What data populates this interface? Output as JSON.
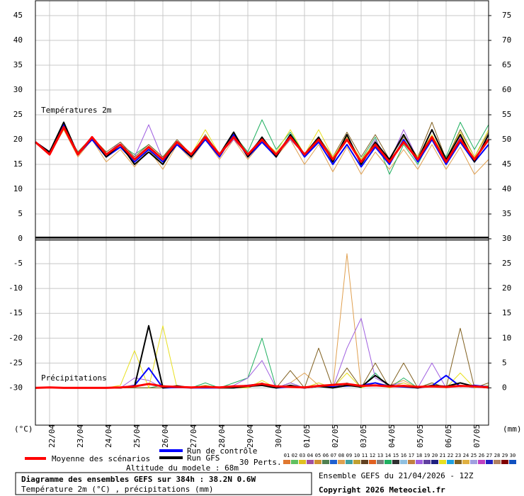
{
  "chart_data": [
    {
      "type": "line",
      "panel_label": "Températures 2m",
      "ylabel": "(°C)",
      "categories": [
        null,
        "22/04",
        null,
        "23/04",
        null,
        "24/04",
        null,
        "25/04",
        null,
        "26/04",
        null,
        "27/04",
        null,
        "28/04",
        null,
        "29/04",
        null,
        "30/04",
        null,
        "01/05",
        null,
        "02/05",
        null,
        "03/05",
        null,
        "04/05",
        null,
        "05/05",
        null,
        "06/05",
        null,
        "07/05",
        null
      ],
      "ylim": [
        0,
        48
      ],
      "yticks": [
        0,
        5,
        10,
        15,
        20,
        25,
        30,
        35,
        40,
        45
      ],
      "y2lim": [
        30,
        78
      ],
      "y2ticks": [
        35,
        40,
        45,
        50,
        55,
        60,
        65,
        70,
        75
      ],
      "grid": true,
      "series": [
        {
          "color": "#e0a050",
          "values": [
            19.5,
            17,
            22,
            16.5,
            20,
            15.5,
            18,
            14.5,
            18,
            14,
            19,
            16,
            20,
            16,
            20,
            16,
            19.5,
            16.5,
            20,
            15,
            19,
            13.5,
            18.5,
            13,
            17.5,
            14,
            18,
            14,
            19,
            14,
            18.5,
            13,
            16
          ]
        },
        {
          "color": "#20b060",
          "values": [
            19.5,
            17,
            22.5,
            17.5,
            20.5,
            17,
            19,
            17,
            19,
            16.5,
            19.5,
            17,
            20.5,
            17,
            21,
            17.5,
            24,
            18,
            21.5,
            17,
            20,
            16,
            20.5,
            16,
            20.5,
            13,
            19,
            15,
            20.5,
            16.5,
            23.5,
            18,
            23
          ]
        },
        {
          "color": "#a060e0",
          "values": [
            19.5,
            17,
            22,
            17,
            20,
            17,
            19.5,
            16.5,
            23,
            16,
            19,
            17,
            20.5,
            17,
            20,
            17,
            20.5,
            17,
            20,
            17,
            20.5,
            16,
            20.5,
            15.5,
            20,
            15.5,
            22,
            16,
            21,
            15.5,
            20.5,
            16,
            20
          ]
        },
        {
          "color": "#806020",
          "values": [
            19.5,
            17.5,
            22.5,
            17.5,
            20.5,
            17.5,
            19.5,
            16.5,
            19,
            16.5,
            20,
            17,
            21,
            17,
            21.5,
            17,
            20.5,
            17,
            21,
            17,
            20.5,
            16.5,
            21.5,
            16.5,
            21,
            16,
            20.5,
            16.5,
            23.5,
            16,
            22,
            16.5,
            21.5
          ]
        },
        {
          "color": "#e8e020",
          "values": [
            19.5,
            17,
            22,
            17,
            20,
            16.5,
            19,
            15.5,
            18,
            15,
            19.5,
            17,
            22,
            17,
            20.5,
            17,
            20,
            17.5,
            22,
            17,
            22,
            16.5,
            20.5,
            16,
            19.5,
            15.5,
            20,
            16.5,
            21,
            16,
            21.5,
            16.5,
            22
          ]
        },
        {
          "name": "Run de contrôle",
          "color": "#0000ff",
          "width": 2,
          "values": [
            19.5,
            17.5,
            23,
            17,
            20,
            16.5,
            18.5,
            15.5,
            18,
            15.5,
            19,
            16.5,
            20,
            16.5,
            21,
            16.5,
            19.5,
            16.5,
            21,
            16.5,
            19.5,
            15,
            19,
            14.5,
            18.5,
            15,
            20,
            15.5,
            20,
            15,
            19.5,
            15.5,
            19
          ]
        },
        {
          "name": "Run GFS",
          "color": "#000000",
          "width": 2,
          "values": [
            19.5,
            17.5,
            23.5,
            17,
            20.5,
            16.5,
            19,
            15,
            17.5,
            15,
            19.5,
            16.5,
            20.5,
            17,
            21.5,
            16.5,
            20.5,
            16.5,
            21,
            17,
            20.5,
            15.5,
            21,
            15,
            19.5,
            16,
            21,
            16,
            22,
            16,
            21,
            15.5,
            21
          ]
        },
        {
          "name": "Moyenne des scénarios",
          "color": "#ff0000",
          "width": 3,
          "values": [
            19.5,
            17,
            22.5,
            17,
            20.5,
            17,
            19,
            16,
            18.5,
            16,
            19.5,
            17,
            20.5,
            17,
            20.5,
            17,
            20,
            17,
            20.5,
            17,
            20,
            16,
            20,
            15.5,
            19,
            15.5,
            19.5,
            16,
            20.5,
            15.5,
            20,
            16,
            20
          ]
        }
      ]
    },
    {
      "type": "line",
      "panel_label": "Précipitations",
      "y2label": "(mm)",
      "ylim": [
        -37.5,
        0
      ],
      "yticks": [
        -30,
        -25,
        -20,
        -15,
        -10,
        -5
      ],
      "y2lim": [
        -7.5,
        30
      ],
      "y2ticks": [
        0,
        5,
        10,
        15,
        20,
        25,
        30
      ],
      "grid": true,
      "series": [
        {
          "color": "#e0a050",
          "axis": "y2",
          "values": [
            0,
            0,
            0,
            0,
            0,
            0,
            0,
            0,
            0,
            0,
            0,
            0,
            0,
            0,
            0.3,
            0.5,
            1,
            0,
            1,
            3,
            0.5,
            0,
            27,
            0,
            1,
            0.5,
            1.5,
            0,
            1,
            0,
            0.5,
            0,
            0.5
          ]
        },
        {
          "color": "#20b060",
          "axis": "y2",
          "values": [
            0,
            0,
            0,
            0,
            0,
            0,
            0,
            0,
            0,
            0.5,
            0,
            0,
            1,
            0,
            1,
            2,
            10,
            0,
            1,
            0,
            0.5,
            0,
            1,
            0,
            3,
            0,
            2,
            0,
            1,
            0,
            0.5,
            0,
            0.3
          ]
        },
        {
          "color": "#a060e0",
          "axis": "y2",
          "values": [
            0,
            0,
            0,
            0,
            0,
            0,
            0,
            2,
            1.5,
            0,
            0,
            0,
            0,
            0,
            0.5,
            2,
            5.5,
            0,
            1,
            0,
            1,
            0,
            8,
            14,
            2,
            0.5,
            1,
            0,
            5,
            0,
            0.5,
            0,
            0.3
          ]
        },
        {
          "color": "#806020",
          "axis": "y2",
          "values": [
            0,
            0,
            0,
            0,
            0,
            0,
            0,
            0,
            0,
            0,
            0,
            0,
            0.5,
            0,
            0,
            0,
            1,
            0,
            3.5,
            0,
            8,
            0,
            4,
            0,
            5,
            0,
            5,
            0,
            1,
            0,
            12,
            0,
            1
          ]
        },
        {
          "color": "#e8e020",
          "axis": "y2",
          "values": [
            0,
            0,
            0,
            0,
            0,
            0,
            0.5,
            7.5,
            0,
            12.5,
            0,
            0,
            0.5,
            0,
            0,
            0,
            1.5,
            0,
            0.5,
            0,
            1,
            0,
            3,
            0,
            1,
            0,
            1,
            0,
            0.5,
            0,
            3,
            0,
            0.5
          ]
        },
        {
          "color": "#0000ff",
          "width": 2,
          "axis": "y2",
          "values": [
            0,
            0.1,
            0,
            0,
            0,
            0,
            0,
            0.5,
            4,
            0,
            0.1,
            0,
            0,
            0,
            0.2,
            0.5,
            0.8,
            0,
            0.2,
            0,
            0.3,
            0.2,
            0.4,
            0.5,
            1,
            0.3,
            0.2,
            0,
            0.4,
            2.5,
            0.3,
            0.5,
            0.2
          ]
        },
        {
          "color": "#000000",
          "width": 2,
          "axis": "y2",
          "values": [
            0,
            0.1,
            0,
            0,
            0,
            0,
            0,
            0.3,
            12.5,
            0,
            0.4,
            0,
            0.3,
            0,
            0,
            0.3,
            0.5,
            0,
            0.5,
            0,
            0.3,
            0,
            0.5,
            0.2,
            2.5,
            0.5,
            0.3,
            0,
            0.5,
            0.3,
            1,
            0.3,
            0
          ]
        },
        {
          "color": "#ff0000",
          "width": 3,
          "axis": "y2",
          "values": [
            0,
            0.1,
            0,
            0,
            0,
            0,
            0.1,
            0.3,
            0.8,
            0.3,
            0.2,
            0.1,
            0.2,
            0.1,
            0.3,
            0.4,
            0.8,
            0.3,
            0.2,
            0.1,
            0.4,
            0.6,
            0.8,
            0.4,
            0.5,
            0.3,
            0.4,
            0.2,
            0.3,
            0.2,
            0.4,
            0.3,
            0.1
          ]
        }
      ]
    }
  ],
  "footer": {
    "perts_label": "30 Perts.",
    "altitude": "Altitude du modele : 68m",
    "perturbations": [
      {
        "label": "01",
        "color": "#e07830"
      },
      {
        "label": "02",
        "color": "#60c060"
      },
      {
        "label": "03",
        "color": "#e0c020"
      },
      {
        "label": "04",
        "color": "#a050a0"
      },
      {
        "label": "05",
        "color": "#d09030"
      },
      {
        "label": "06",
        "color": "#508050"
      },
      {
        "label": "07",
        "color": "#2060d0"
      },
      {
        "label": "08",
        "color": "#e0a050"
      },
      {
        "label": "09",
        "color": "#40a0a0"
      },
      {
        "label": "10",
        "color": "#c0a030"
      },
      {
        "label": "11",
        "color": "#604020"
      },
      {
        "label": "12",
        "color": "#e06020"
      },
      {
        "label": "13",
        "color": "#808080"
      },
      {
        "label": "14",
        "color": "#20b060"
      },
      {
        "label": "15",
        "color": "#303030"
      },
      {
        "label": "16",
        "color": "#90c0e0"
      },
      {
        "label": "17",
        "color": "#c08040"
      },
      {
        "label": "18",
        "color": "#a060e0"
      },
      {
        "label": "19",
        "color": "#6040a0"
      },
      {
        "label": "20",
        "color": "#202080"
      },
      {
        "label": "21",
        "color": "#e8e020"
      },
      {
        "label": "22",
        "color": "#20a0e0"
      },
      {
        "label": "23",
        "color": "#806020"
      },
      {
        "label": "24",
        "color": "#e0b040"
      },
      {
        "label": "25",
        "color": "#a0a0e0"
      },
      {
        "label": "26",
        "color": "#c040c0"
      },
      {
        "label": "27",
        "color": "#2020c0"
      },
      {
        "label": "28",
        "color": "#b08060"
      },
      {
        "label": "29",
        "color": "#800000"
      },
      {
        "label": "30",
        "color": "#1050c0"
      }
    ],
    "box_title": "Diagramme des ensembles GEFS sur 384h : 38.2N 0.6W",
    "box_subtitle": "Température 2m (°C) , précipitations (mm)",
    "ensemble": "Ensemble GEFS du 21/04/2026 - 12Z",
    "copyright": "Copyright 2026 Meteociel.fr"
  }
}
